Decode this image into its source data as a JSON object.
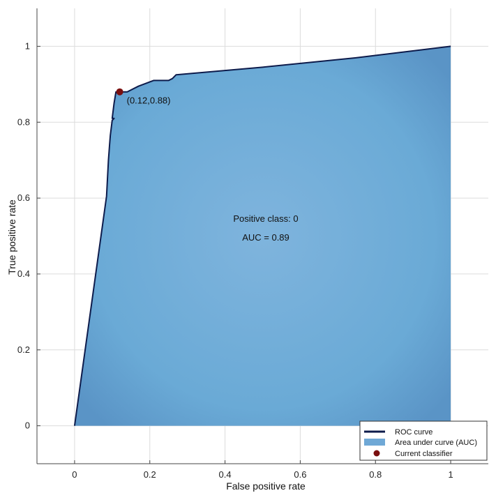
{
  "chart_data": {
    "type": "area",
    "xlabel": "False positive rate",
    "ylabel": "True positive rate",
    "xlim": [
      -0.1,
      1.1
    ],
    "ylim": [
      -0.1,
      1.1
    ],
    "x_ticks": [
      0,
      0.2,
      0.4,
      0.6,
      0.8,
      1
    ],
    "y_ticks": [
      0,
      0.2,
      0.4,
      0.6,
      0.8,
      1
    ],
    "tick_labels_x": [
      "0",
      "0.2",
      "0.4",
      "0.6",
      "0.8",
      "1"
    ],
    "tick_labels_y": [
      "0",
      "0.2",
      "0.4",
      "0.6",
      "0.8",
      "1"
    ],
    "grid": true,
    "legend_position": "bottom-right",
    "series": [
      {
        "name": "ROC curve",
        "color": "#0d1b4b",
        "x": [
          0,
          0.085,
          0.09,
          0.093,
          0.095,
          0.1,
          0.105,
          0.1,
          0.105,
          0.11,
          0.12,
          0.14,
          0.17,
          0.21,
          0.25,
          0.26,
          0.27,
          0.5,
          0.75,
          1
        ],
        "y": [
          0,
          0.605,
          0.7,
          0.74,
          0.765,
          0.805,
          0.81,
          0.81,
          0.85,
          0.88,
          0.88,
          0.88,
          0.895,
          0.91,
          0.91,
          0.915,
          0.925,
          0.945,
          0.97,
          1
        ]
      }
    ],
    "area": {
      "name": "Area under curve (AUC)",
      "color": "#6fa8d6"
    },
    "current_classifier": {
      "name": "Current classifier",
      "x": 0.12,
      "y": 0.88,
      "label": "(0.12,0.88)",
      "color": "#7a0f0f"
    },
    "annotations": {
      "positive_class": "Positive class: 0",
      "auc": "AUC = 0.89"
    }
  }
}
